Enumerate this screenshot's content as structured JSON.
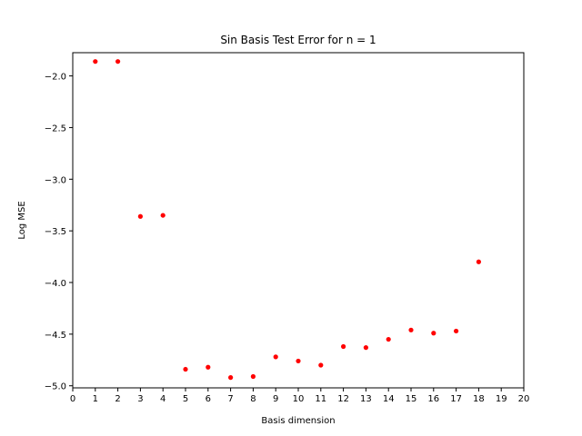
{
  "chart_data": {
    "type": "scatter",
    "title": "Sin Basis Test Error for n = 1",
    "xlabel": "Basis dimension",
    "ylabel": "Log MSE",
    "xlim": [
      0,
      20
    ],
    "ylim": [
      -5.0,
      -1.8
    ],
    "xticks": [
      0,
      1,
      2,
      3,
      4,
      5,
      6,
      7,
      8,
      9,
      10,
      11,
      12,
      13,
      14,
      15,
      16,
      17,
      18,
      19,
      20
    ],
    "yticks": [
      -2.0,
      -2.5,
      -3.0,
      -3.5,
      -4.0,
      -4.5,
      -5.0
    ],
    "ytick_labels": [
      "−2.0",
      "−2.5",
      "−3.0",
      "−3.5",
      "−4.0",
      "−4.5",
      "−5.0"
    ],
    "grid": false,
    "marker_color": "#ff0000",
    "series": [
      {
        "x": [
          1,
          2,
          3,
          4,
          5,
          6,
          7,
          8,
          9,
          10,
          11,
          12,
          13,
          14,
          15,
          16,
          17,
          18
        ],
        "y": [
          -1.86,
          -1.86,
          -3.36,
          -3.35,
          -4.84,
          -4.82,
          -4.92,
          -4.91,
          -4.72,
          -4.76,
          -4.8,
          -4.62,
          -4.63,
          -4.55,
          -4.46,
          -4.49,
          -4.47,
          -3.8
        ]
      }
    ]
  }
}
